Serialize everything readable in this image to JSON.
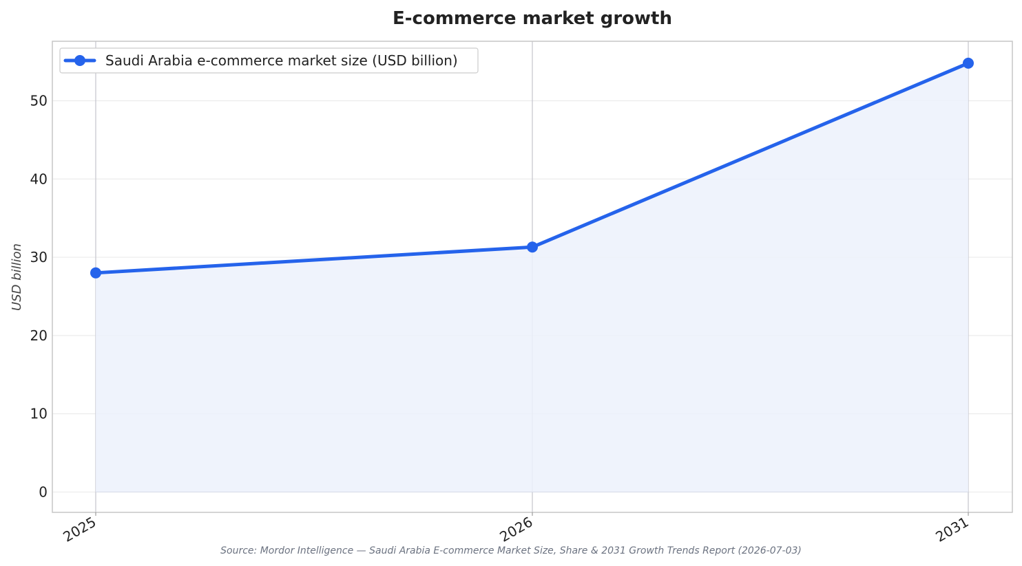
{
  "chart_data": {
    "type": "line",
    "title": "E-commerce market growth",
    "xlabel": "",
    "ylabel": "USD billion",
    "categories": [
      "2025",
      "2026",
      "2031"
    ],
    "series": [
      {
        "name": "Saudi Arabia e-commerce market size (USD billion)",
        "values": [
          28.0,
          31.3,
          54.8
        ]
      }
    ],
    "ylim": [
      -2.6,
      57.6
    ],
    "yticks": [
      0,
      10,
      20,
      30,
      40,
      50
    ],
    "grid": true,
    "area_fill": true,
    "legend": "top-left",
    "colors": {
      "line": "#2563eb",
      "fill": "#ecf1fc",
      "grid": "#ebebeb",
      "vgrid": "#c8c8d0",
      "frame": "#c6c6c6"
    }
  },
  "source": "Source: Mordor Intelligence — Saudi Arabia E-commerce Market Size, Share & 2031 Growth Trends Report (2026-07-03)"
}
